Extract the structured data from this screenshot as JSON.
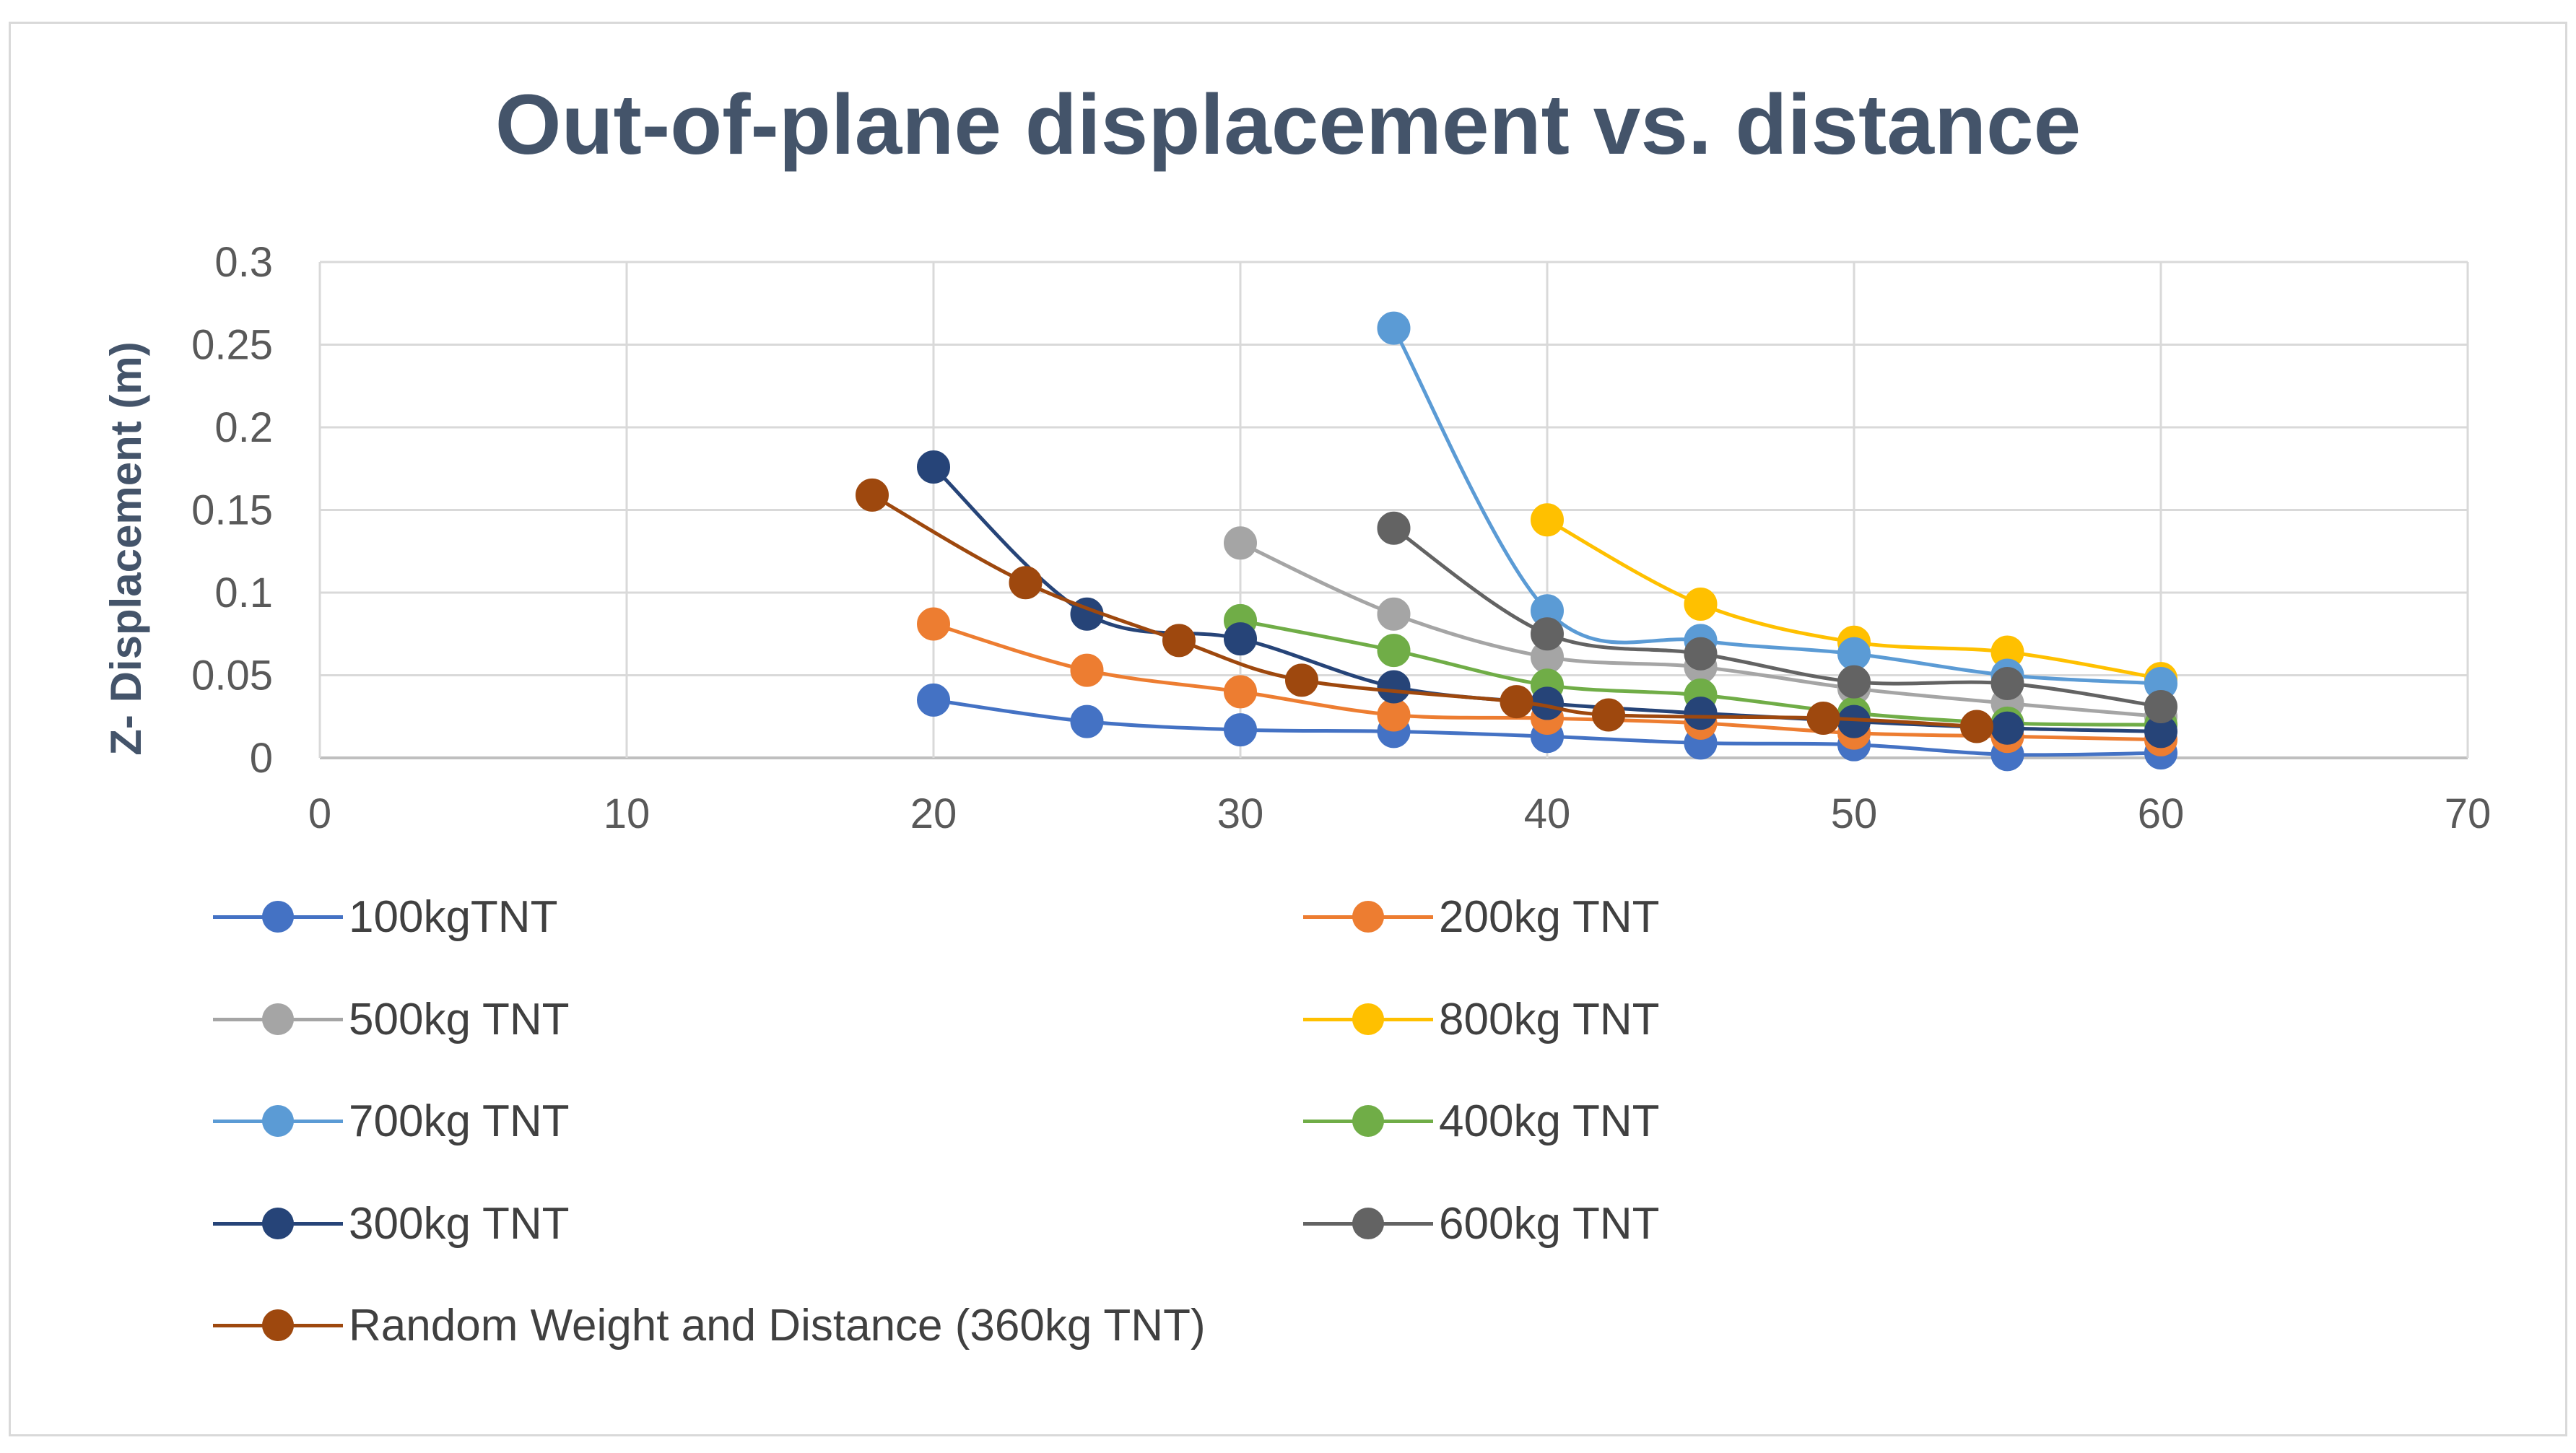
{
  "chart_data": {
    "type": "scatter",
    "title": "Out-of-plane displacement vs. distance",
    "xlabel": "",
    "ylabel": "Z- Displacement (m)",
    "xlim": [
      0,
      70
    ],
    "ylim": [
      0,
      0.3
    ],
    "xticks": [
      "0",
      "10",
      "20",
      "30",
      "40",
      "50",
      "60",
      "70"
    ],
    "yticks": [
      "0",
      "0.05",
      "0.1",
      "0.15",
      "0.2",
      "0.25",
      "0.3"
    ],
    "grid": true,
    "legend_position": "bottom",
    "series": [
      {
        "name": "100kgTNT",
        "color": "#4472c4",
        "x": [
          20,
          25,
          30,
          35,
          40,
          45,
          50,
          55,
          60
        ],
        "y": [
          0.035,
          0.022,
          0.017,
          0.016,
          0.013,
          0.009,
          0.008,
          0.002,
          0.003
        ]
      },
      {
        "name": "200kg TNT",
        "color": "#ed7d31",
        "x": [
          20,
          25,
          30,
          35,
          40,
          45,
          50,
          55,
          60
        ],
        "y": [
          0.081,
          0.053,
          0.04,
          0.026,
          0.024,
          0.021,
          0.015,
          0.013,
          0.011
        ]
      },
      {
        "name": "500kg TNT",
        "color": "#a5a5a5",
        "x": [
          30,
          35,
          40,
          45,
          50,
          55,
          60
        ],
        "y": [
          0.13,
          0.087,
          0.061,
          0.055,
          0.042,
          0.033,
          0.025
        ]
      },
      {
        "name": "800kg TNT",
        "color": "#ffc000",
        "x": [
          40,
          45,
          50,
          55,
          60
        ],
        "y": [
          0.144,
          0.093,
          0.07,
          0.064,
          0.048
        ]
      },
      {
        "name": "700kg TNT",
        "color": "#5b9bd5",
        "x": [
          35,
          40,
          45,
          50,
          55,
          60
        ],
        "y": [
          0.26,
          0.089,
          0.071,
          0.063,
          0.05,
          0.045
        ]
      },
      {
        "name": "400kg TNT",
        "color": "#70ad47",
        "x": [
          30,
          35,
          40,
          45,
          50,
          55,
          60
        ],
        "y": [
          0.083,
          0.065,
          0.044,
          0.038,
          0.027,
          0.021,
          0.02
        ]
      },
      {
        "name": "300kg TNT",
        "color": "#264478",
        "x": [
          20,
          25,
          30,
          35,
          40,
          45,
          50,
          55,
          60
        ],
        "y": [
          0.176,
          0.087,
          0.072,
          0.043,
          0.033,
          0.027,
          0.022,
          0.018,
          0.016
        ]
      },
      {
        "name": "600kg TNT",
        "color": "#636363",
        "x": [
          35,
          40,
          45,
          50,
          55,
          60
        ],
        "y": [
          0.139,
          0.075,
          0.063,
          0.046,
          0.045,
          0.031
        ]
      },
      {
        "name": "Random Weight  and Distance (360kg TNT)",
        "color": "#9e480e",
        "x": [
          18,
          23,
          28,
          32,
          39,
          42,
          49,
          54
        ],
        "y": [
          0.159,
          0.106,
          0.071,
          0.047,
          0.034,
          0.026,
          0.024,
          0.019
        ]
      }
    ]
  }
}
